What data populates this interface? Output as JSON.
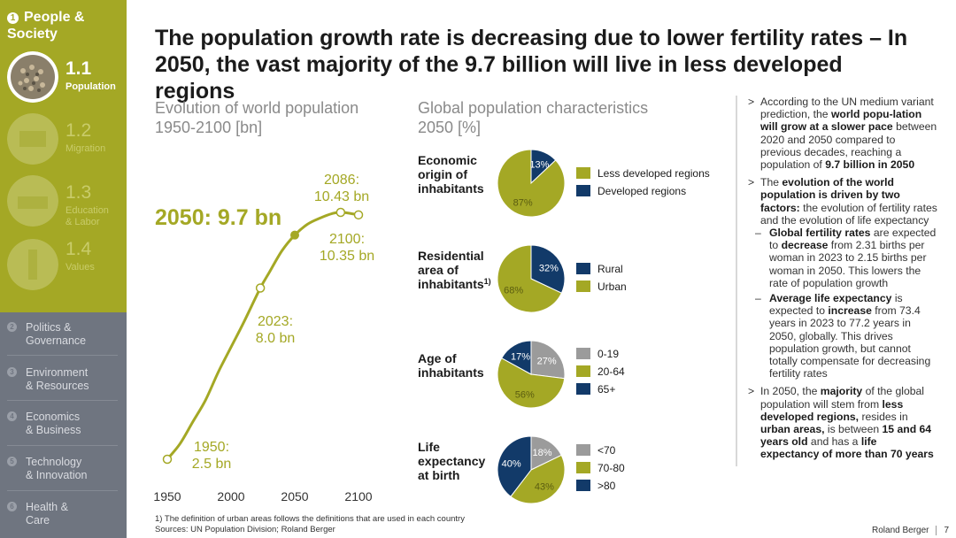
{
  "sidebar": {
    "section_num": "1",
    "section_title_line1": "People &",
    "section_title_line2": "Society",
    "subs": [
      {
        "num": "1.1",
        "label1": "Population",
        "label2": ""
      },
      {
        "num": "1.2",
        "label1": "Migration",
        "label2": ""
      },
      {
        "num": "1.3",
        "label1": "Education",
        "label2": "& Labor"
      },
      {
        "num": "1.4",
        "label1": "Values",
        "label2": ""
      }
    ],
    "nav": [
      {
        "num": "2",
        "line1": "Politics &",
        "line2": "Governance"
      },
      {
        "num": "3",
        "line1": "Environment",
        "line2": "& Resources"
      },
      {
        "num": "4",
        "line1": "Economics",
        "line2": "& Business"
      },
      {
        "num": "5",
        "line1": "Technology",
        "line2": "& Innovation"
      },
      {
        "num": "6",
        "line1": "Health &",
        "line2": "Care"
      }
    ]
  },
  "title_line1": "The population growth rate is decreasing due to lower fertility rates – In",
  "title_line2": "2050, the vast majority of the 9.7 billion will live in less developed regions",
  "colors": {
    "olive": "#a4a825",
    "navy": "#123a69",
    "grey": "#9b9b9b"
  },
  "chart_data": [
    {
      "type": "line",
      "title": "Evolution of world population",
      "subtitle": "1950-2100 [bn]",
      "x_ticks": [
        "1950",
        "2000",
        "2050",
        "2100"
      ],
      "xlim": [
        1950,
        2100
      ],
      "highlight_label": "2050: 9.7 bn",
      "points": [
        {
          "x": 1950,
          "y": 2.5,
          "label1": "1950:",
          "label2": "2.5 bn"
        },
        {
          "x": 2023,
          "y": 8.0,
          "label1": "2023:",
          "label2": "8.0 bn"
        },
        {
          "x": 2050,
          "y": 9.7,
          "label1": "",
          "label2": ""
        },
        {
          "x": 2086,
          "y": 10.43,
          "label1": "2086:",
          "label2": "10.43 bn"
        },
        {
          "x": 2100,
          "y": 10.35,
          "label1": "2100:",
          "label2": "10.35 bn"
        }
      ],
      "curve": [
        [
          1950,
          2.5
        ],
        [
          1960,
          3.0
        ],
        [
          1970,
          3.7
        ],
        [
          1980,
          4.4
        ],
        [
          1990,
          5.3
        ],
        [
          2000,
          6.1
        ],
        [
          2010,
          6.9
        ],
        [
          2023,
          8.0
        ],
        [
          2030,
          8.5
        ],
        [
          2040,
          9.2
        ],
        [
          2050,
          9.7
        ],
        [
          2060,
          10.05
        ],
        [
          2070,
          10.25
        ],
        [
          2080,
          10.4
        ],
        [
          2086,
          10.43
        ],
        [
          2090,
          10.42
        ],
        [
          2100,
          10.35
        ]
      ]
    },
    {
      "type": "pie",
      "title": "Global population characteristics",
      "subtitle": "2050 [%]",
      "groups": [
        {
          "label": [
            "Economic",
            "origin of",
            "inhabitants"
          ],
          "sup": "",
          "slices": [
            {
              "name": "Developed regions",
              "value": 13,
              "color": "#123a69"
            },
            {
              "name": "Less developed regions",
              "value": 87,
              "color": "#a4a825"
            }
          ],
          "labels": [
            "13%",
            "87%"
          ],
          "legend": [
            {
              "name": "Less developed regions",
              "color": "#a4a825"
            },
            {
              "name": "Developed regions",
              "color": "#123a69"
            }
          ]
        },
        {
          "label": [
            "Residential",
            "area of",
            "inhabitants"
          ],
          "sup": "1)",
          "slices": [
            {
              "name": "Rural",
              "value": 32,
              "color": "#123a69"
            },
            {
              "name": "Urban",
              "value": 68,
              "color": "#a4a825"
            }
          ],
          "labels": [
            "32%",
            "68%"
          ],
          "legend": [
            {
              "name": "Rural",
              "color": "#123a69"
            },
            {
              "name": "Urban",
              "color": "#a4a825"
            }
          ]
        },
        {
          "label": [
            "Age of",
            "inhabitants"
          ],
          "sup": "",
          "slices": [
            {
              "name": "0-19",
              "value": 27,
              "color": "#9b9b9b"
            },
            {
              "name": "20-64",
              "value": 56,
              "color": "#a4a825"
            },
            {
              "name": "65+",
              "value": 17,
              "color": "#123a69"
            }
          ],
          "labels": [
            "27%",
            "56%",
            "17%"
          ],
          "legend": [
            {
              "name": "0-19",
              "color": "#9b9b9b"
            },
            {
              "name": "20-64",
              "color": "#a4a825"
            },
            {
              "name": "65+",
              "color": "#123a69"
            }
          ]
        },
        {
          "label": [
            "Life",
            "expectancy",
            "at birth"
          ],
          "sup": "",
          "slices": [
            {
              "name": "<70",
              "value": 18,
              "color": "#9b9b9b"
            },
            {
              "name": "70-80",
              "value": 43,
              "color": "#a4a825"
            },
            {
              "name": ">80",
              "value": 40,
              "color": "#123a69"
            }
          ],
          "labels": [
            "18%",
            "43%",
            "40%"
          ],
          "legend": [
            {
              "name": "<70",
              "color": "#9b9b9b"
            },
            {
              "name": "70-80",
              "color": "#a4a825"
            },
            {
              "name": ">80",
              "color": "#123a69"
            }
          ]
        }
      ]
    }
  ],
  "footnote1": "1) The definition of urban areas follows the definitions that are used in each country",
  "footnote2": "Sources: UN Population Division; Roland Berger",
  "bullets": {
    "b1": [
      "According to the UN medium variant prediction, the ",
      "world popu-lation will grow at a slower pace",
      " between 2020 and 2050 compared to previous decades, reaching a population of ",
      "9.7 billion in 2050"
    ],
    "b2": [
      "The ",
      "evolution of the world population is driven by two factors:",
      " the evolution of fertility rates and the evolution of life expectancy"
    ],
    "s1": [
      "Global fertility rates",
      " are expected to ",
      "decrease",
      " from 2.31 births per woman in 2023 to 2.15 births per woman in 2050. This lowers the rate of population growth"
    ],
    "s2": [
      "Average life expectancy",
      " is expected to ",
      "increase",
      " from 73.4 years in 2023 to 77.2 years in 2050, globally. This drives population growth, but cannot totally compensate for decreasing fertility rates"
    ],
    "b3": [
      "In 2050, the ",
      "majority",
      " of the global population will stem from ",
      "less developed regions,",
      " resides in ",
      "urban areas,",
      " is between ",
      "15 and 64 years old",
      " and has a ",
      "life expectancy of more than 70 years"
    ],
    "marker": ">",
    "dash": "–"
  },
  "brand": "Roland Berger",
  "page": "7"
}
